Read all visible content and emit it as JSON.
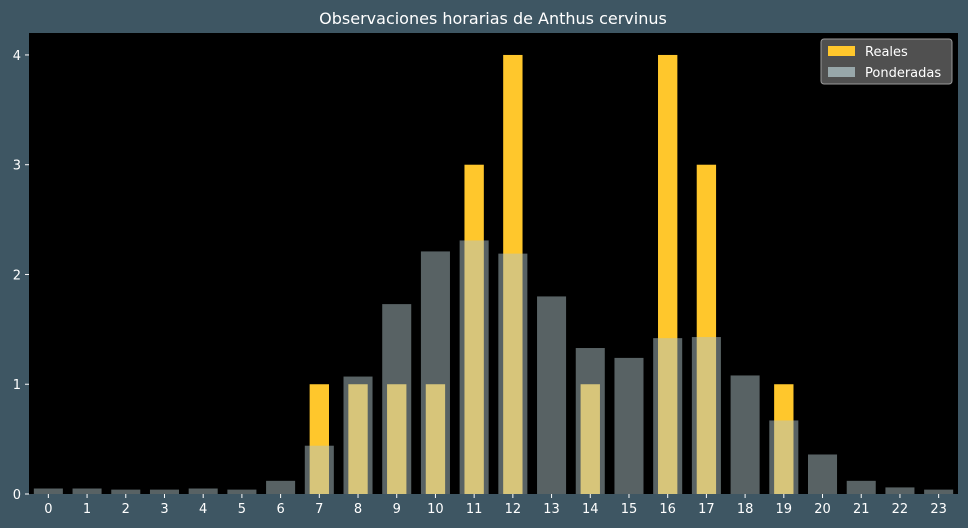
{
  "chart_data": {
    "type": "bar",
    "title": "Observaciones horarias de Anthus cervinus",
    "xlabel": "",
    "ylabel": "",
    "categories": [
      "0",
      "1",
      "2",
      "3",
      "4",
      "5",
      "6",
      "7",
      "8",
      "9",
      "10",
      "11",
      "12",
      "13",
      "14",
      "15",
      "16",
      "17",
      "18",
      "19",
      "20",
      "21",
      "22",
      "23"
    ],
    "series": [
      {
        "name": "Reales",
        "color": "#ffc72c",
        "values": [
          0,
          0,
          0,
          0,
          0,
          0,
          0,
          1,
          1,
          1,
          1,
          3,
          4,
          0,
          1,
          0,
          4,
          3,
          0,
          1,
          0,
          0,
          0,
          0
        ]
      },
      {
        "name": "Ponderadas",
        "color": "#b0c4c8",
        "opacity": 0.5,
        "values": [
          0.05,
          0.05,
          0.04,
          0.04,
          0.05,
          0.04,
          0.12,
          0.44,
          1.07,
          1.73,
          2.21,
          2.31,
          2.19,
          1.8,
          1.33,
          1.24,
          1.42,
          1.43,
          1.08,
          0.67,
          0.36,
          0.12,
          0.06,
          0.04
        ]
      }
    ],
    "ylim": [
      0,
      4.2
    ],
    "yticks": [
      0,
      1,
      2,
      3,
      4
    ],
    "grid": false,
    "legend_position": "top-right",
    "colors": {
      "figure_background": "#3e5663",
      "plot_background": "#000000",
      "text": "#ffffff",
      "legend_background": "#595959",
      "legend_border": "#9a9a9a"
    }
  }
}
